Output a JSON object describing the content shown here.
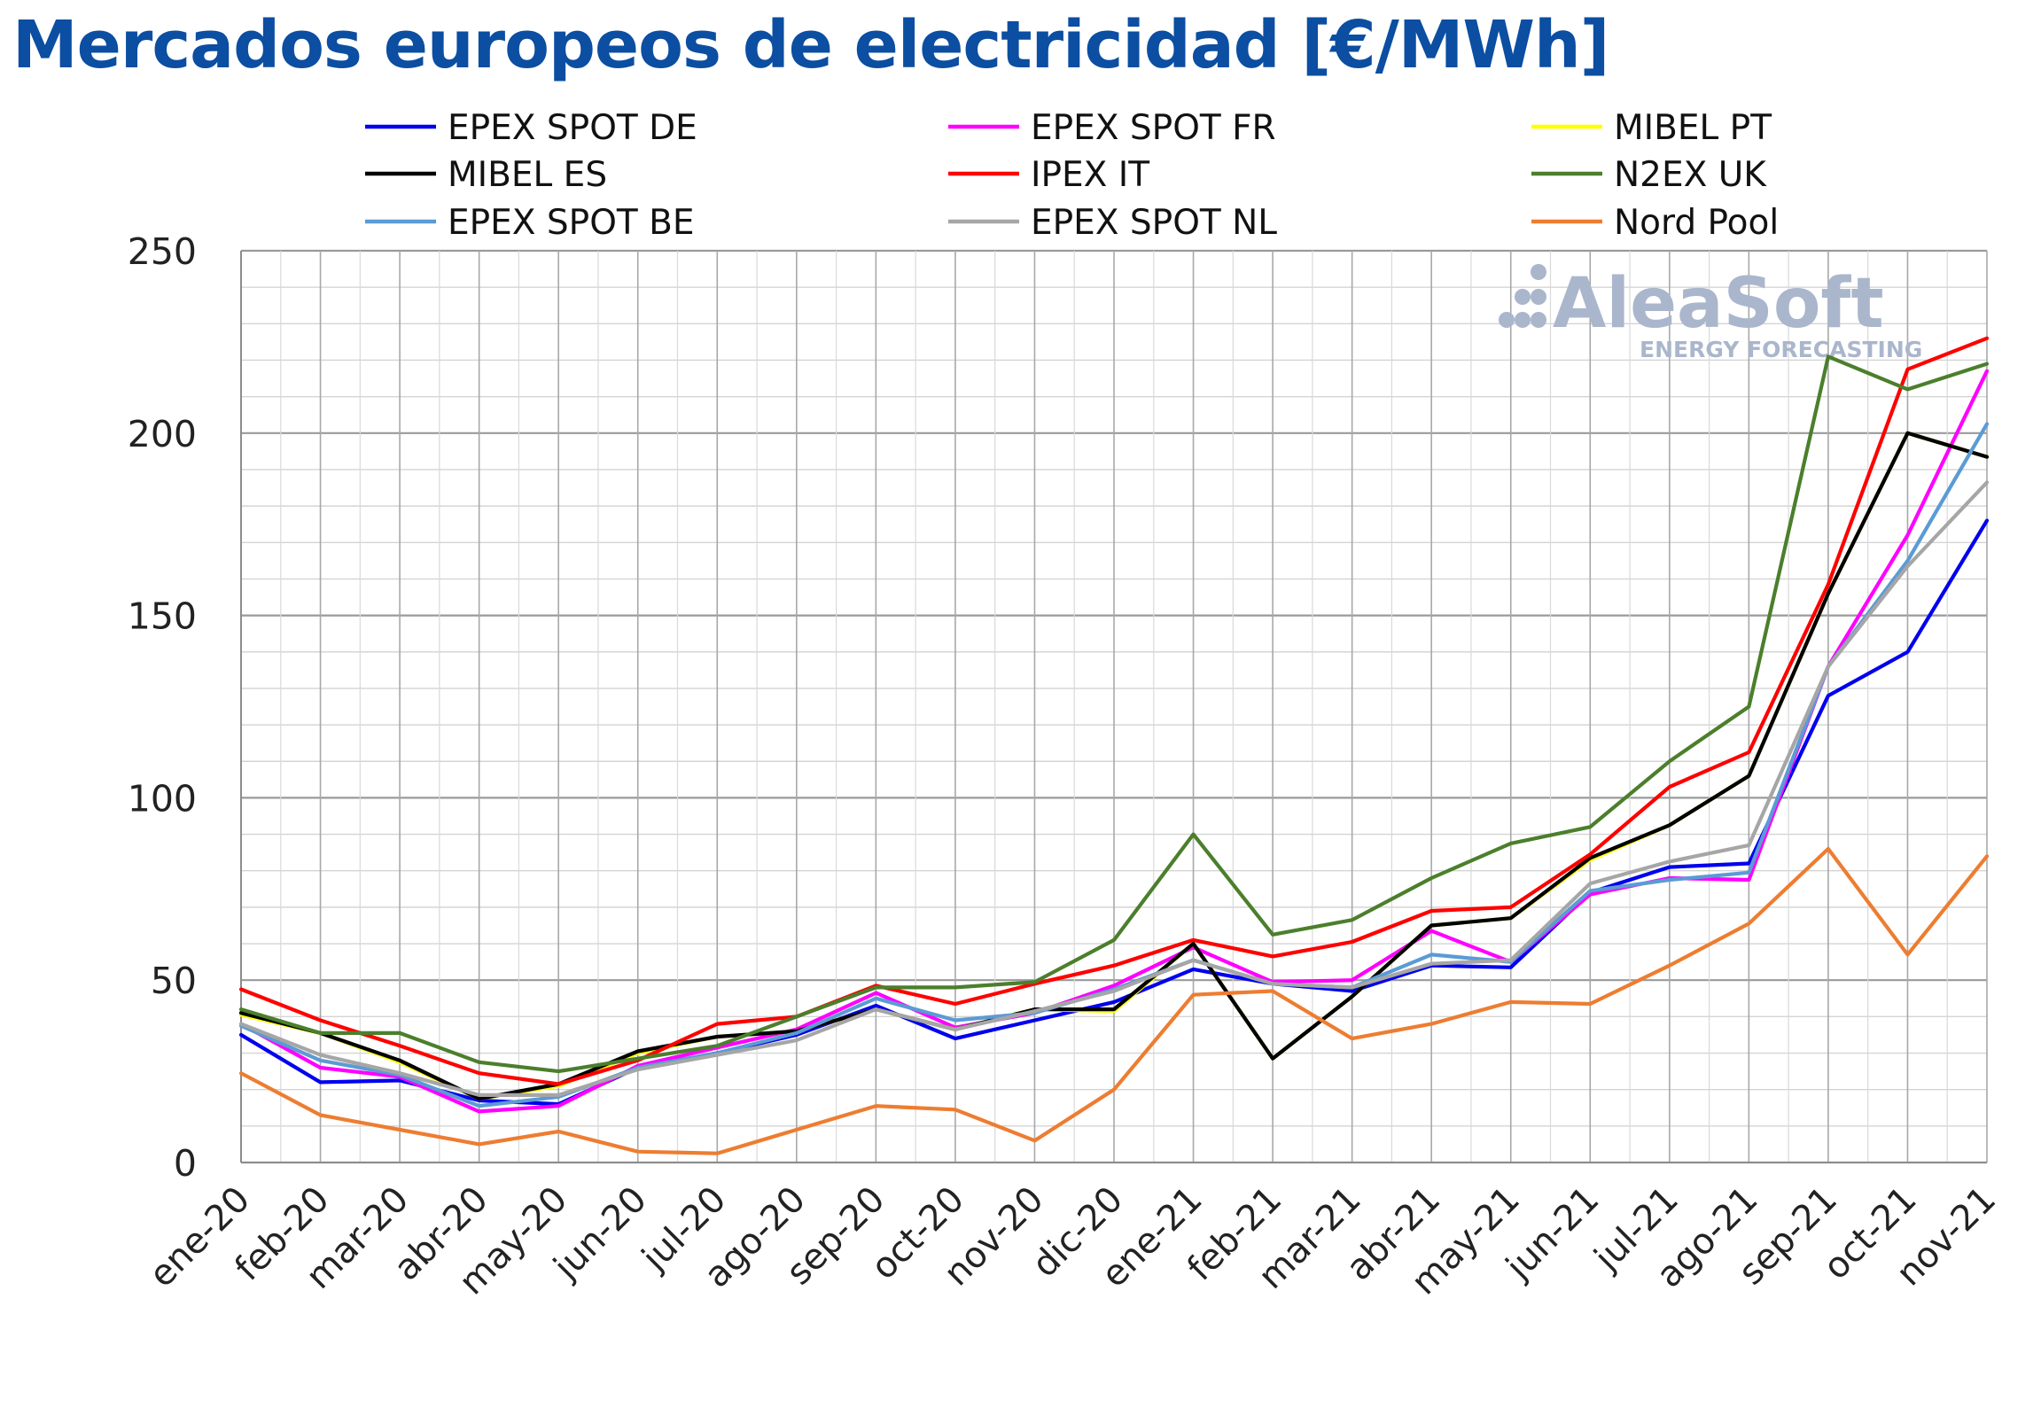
{
  "title": "Mercados europeos de electricidad [€/MWh]",
  "watermark": {
    "name": "AleaSoft",
    "tagline": "ENERGY FORECASTING"
  },
  "chart_data": {
    "type": "line",
    "title": "Mercados europeos de electricidad [€/MWh]",
    "xlabel": "",
    "ylabel": "",
    "ylim": [
      0,
      250
    ],
    "yticks": [
      0,
      50,
      100,
      150,
      200,
      250
    ],
    "grid": true,
    "legend_position": "top",
    "categories": [
      "ene-20",
      "feb-20",
      "mar-20",
      "abr-20",
      "may-20",
      "jun-20",
      "jul-20",
      "ago-20",
      "sep-20",
      "oct-20",
      "nov-20",
      "dic-20",
      "ene-21",
      "feb-21",
      "mar-21",
      "abr-21",
      "may-21",
      "jun-21",
      "jul-21",
      "ago-21",
      "sep-21",
      "oct-21",
      "nov-21"
    ],
    "series": [
      {
        "name": "EPEX SPOT DE",
        "color": "#0000ee",
        "values": [
          35.0,
          22.0,
          22.5,
          17.0,
          16.0,
          26.0,
          30.0,
          35.0,
          43.0,
          34.0,
          39.0,
          44.0,
          53.0,
          49.0,
          47.0,
          54.0,
          53.5,
          74.0,
          81.0,
          82.0,
          128.0,
          140.0,
          176.0
        ]
      },
      {
        "name": "EPEX SPOT FR",
        "color": "#ff00ff",
        "values": [
          38.0,
          26.0,
          23.5,
          14.0,
          15.5,
          26.5,
          31.5,
          36.5,
          46.5,
          37.0,
          41.0,
          48.5,
          59.0,
          49.5,
          50.0,
          63.5,
          55.0,
          73.5,
          78.0,
          77.5,
          136.0,
          172.0,
          217.0
        ]
      },
      {
        "name": "MIBEL PT",
        "color": "#ffff00",
        "values": [
          40.5,
          35.5,
          27.5,
          17.5,
          21.0,
          30.0,
          34.5,
          36.0,
          42.0,
          36.5,
          42.0,
          41.5,
          60.0,
          28.5,
          45.5,
          65.0,
          67.0,
          83.0,
          92.5,
          106.0,
          156.0,
          200.0,
          193.5
        ]
      },
      {
        "name": "MIBEL ES",
        "color": "#000000",
        "values": [
          41.0,
          35.5,
          28.0,
          17.5,
          21.5,
          30.5,
          34.5,
          36.0,
          42.0,
          36.5,
          42.0,
          42.0,
          60.0,
          28.5,
          45.5,
          65.0,
          67.0,
          83.5,
          92.5,
          106.0,
          156.0,
          200.0,
          193.5
        ]
      },
      {
        "name": "IPEX IT",
        "color": "#ff0000",
        "values": [
          47.5,
          39.0,
          32.0,
          24.5,
          21.5,
          28.0,
          38.0,
          40.0,
          48.5,
          43.5,
          49.0,
          54.0,
          61.0,
          56.5,
          60.5,
          69.0,
          70.0,
          84.5,
          103.0,
          112.5,
          158.5,
          217.5,
          226.0
        ]
      },
      {
        "name": "N2EX UK",
        "color": "#4b7f2c",
        "values": [
          42.0,
          35.5,
          35.5,
          27.5,
          25.0,
          28.5,
          32.0,
          40.0,
          48.0,
          48.0,
          49.5,
          61.0,
          90.0,
          62.5,
          66.5,
          78.0,
          87.5,
          92.0,
          110.0,
          125.0,
          221.0,
          212.0,
          219.0
        ]
      },
      {
        "name": "EPEX SPOT BE",
        "color": "#5b9bd5",
        "values": [
          37.5,
          28.0,
          24.0,
          15.5,
          18.0,
          26.0,
          30.0,
          35.5,
          45.0,
          39.0,
          41.0,
          47.5,
          55.5,
          49.0,
          48.0,
          57.0,
          55.0,
          74.5,
          77.5,
          79.5,
          136.0,
          165.0,
          202.5
        ]
      },
      {
        "name": "EPEX SPOT NL",
        "color": "#a6a6a6",
        "values": [
          38.0,
          29.5,
          24.5,
          18.5,
          18.5,
          25.5,
          29.5,
          33.5,
          42.0,
          36.5,
          41.5,
          47.0,
          55.5,
          49.0,
          48.0,
          54.5,
          55.5,
          76.5,
          82.5,
          87.0,
          136.0,
          163.5,
          186.5
        ]
      },
      {
        "name": "Nord Pool",
        "color": "#ed7d31",
        "values": [
          24.5,
          13.0,
          9.0,
          5.0,
          8.5,
          3.0,
          2.5,
          9.0,
          15.5,
          14.5,
          6.0,
          20.0,
          46.0,
          47.0,
          34.0,
          38.0,
          44.0,
          43.5,
          54.0,
          65.5,
          86.0,
          57.0,
          84.0
        ]
      }
    ]
  }
}
